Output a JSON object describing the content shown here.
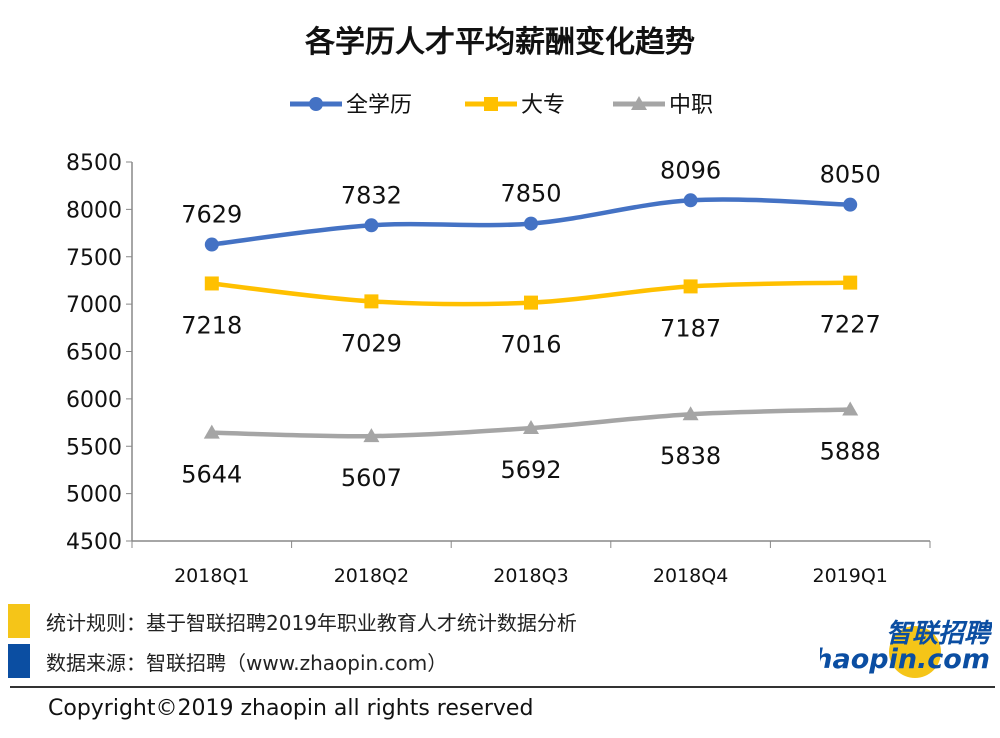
{
  "chart_data": {
    "type": "line",
    "title": "各学历人才平均薪酬变化趋势",
    "categories": [
      "2018Q1",
      "2018Q2",
      "2018Q3",
      "2018Q4",
      "2019Q1"
    ],
    "series": [
      {
        "name": "全学历",
        "values": [
          7629,
          7832,
          7850,
          8096,
          8050
        ],
        "color": "#4472c4",
        "marker": "circle",
        "label_pos": "above"
      },
      {
        "name": "大专",
        "values": [
          7218,
          7029,
          7016,
          7187,
          7227
        ],
        "color": "#ffc000",
        "marker": "square",
        "label_pos": "below"
      },
      {
        "name": "中职",
        "values": [
          5644,
          5607,
          5692,
          5838,
          5888
        ],
        "color": "#a5a5a5",
        "marker": "triangle",
        "label_pos": "below"
      }
    ],
    "ylim": [
      4500,
      8500
    ],
    "yticks": [
      4500,
      5000,
      5500,
      6000,
      6500,
      7000,
      7500,
      8000,
      8500
    ],
    "legend": "top",
    "grid": false
  },
  "notes": [
    {
      "text": "统计规则：基于智联招聘2019年职业教育人才统计数据分析",
      "color": "#f5c518"
    },
    {
      "text": "数据来源：智联招聘（www.zhaopin.com）",
      "color": "#0b4ea2"
    }
  ],
  "copyright": "Copyright©2019 zhaopin all rights reserved",
  "logo": {
    "cn": "智联招聘",
    "en": "zhaopin.com"
  }
}
